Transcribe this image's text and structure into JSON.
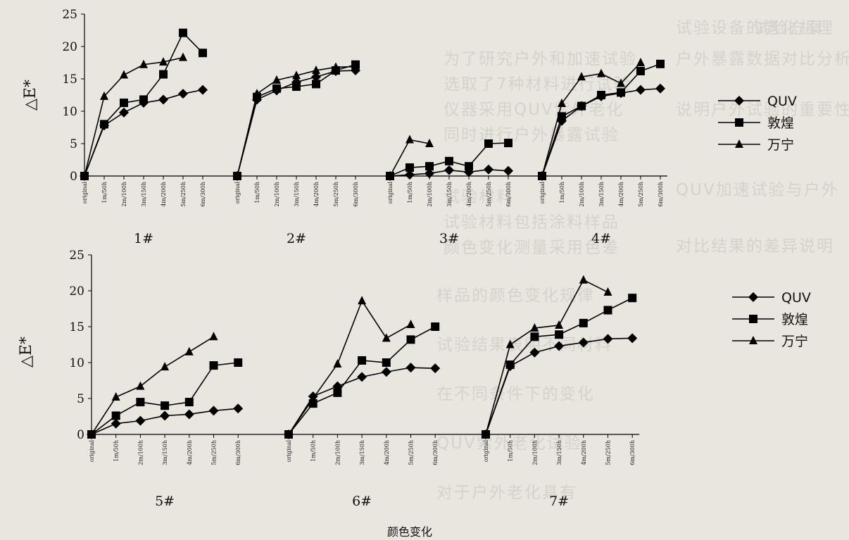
{
  "caption": "颜色变化",
  "chart_data": [
    {
      "type": "line",
      "ylabel": "△E*",
      "ylim": [
        0,
        25
      ],
      "yticks": [
        0,
        5,
        10,
        15,
        20,
        25
      ],
      "x": [
        "original",
        "1m/50h",
        "2m/100h",
        "3m/150h",
        "4m/200h",
        "5m/250h",
        "6m/300h"
      ],
      "legend_position": "right",
      "legend": [
        "QUV",
        "敦煌",
        "万宁"
      ],
      "groups": [
        {
          "label": "1#",
          "series": [
            {
              "name": "QUV",
              "values": [
                0,
                7.8,
                9.8,
                11.3,
                11.8,
                12.7,
                13.3
              ]
            },
            {
              "name": "敦煌",
              "values": [
                0,
                8,
                11.3,
                11.8,
                15.7,
                22.1,
                19
              ]
            },
            {
              "name": "万宁",
              "values": [
                0,
                12.3,
                15.6,
                17.2,
                17.6,
                18.3
              ]
            }
          ]
        },
        {
          "label": "2#",
          "series": [
            {
              "name": "QUV",
              "values": [
                0,
                11.8,
                13.2,
                14.5,
                15.3,
                16.2,
                16.3
              ]
            },
            {
              "name": "敦煌",
              "values": [
                0,
                12.2,
                13.5,
                13.8,
                14.2,
                16.3,
                17.2
              ]
            },
            {
              "name": "万宁",
              "values": [
                0,
                12.7,
                14.8,
                15.5,
                16.3,
                16.8,
                16.9
              ]
            }
          ]
        },
        {
          "label": "3#",
          "series": [
            {
              "name": "QUV",
              "values": [
                0,
                0.2,
                0.4,
                0.9,
                0.6,
                1.0,
                0.8
              ]
            },
            {
              "name": "敦煌",
              "values": [
                0,
                1.3,
                1.5,
                2.3,
                1.5,
                5.0,
                5.1
              ]
            },
            {
              "name": "万宁",
              "values": [
                0,
                5.6,
                5.0
              ]
            }
          ]
        },
        {
          "label": "4#",
          "series": [
            {
              "name": "QUV",
              "values": [
                0,
                8.5,
                10.8,
                12.3,
                12.8,
                13.3,
                13.5
              ]
            },
            {
              "name": "敦煌",
              "values": [
                0,
                9.2,
                10.8,
                12.5,
                12.9,
                16.2,
                17.3
              ]
            },
            {
              "name": "万宁",
              "values": [
                0,
                11.2,
                15.3,
                15.8,
                14.3,
                17.5
              ]
            }
          ]
        }
      ]
    },
    {
      "type": "line",
      "ylabel": "△E*",
      "ylim": [
        0,
        25
      ],
      "yticks": [
        0,
        5,
        10,
        15,
        20,
        25
      ],
      "x": [
        "original",
        "1m/50h",
        "2m/100h",
        "3m/150h",
        "4m/200h",
        "5m/250h",
        "6m/300h"
      ],
      "legend_position": "right",
      "legend": [
        "QUV",
        "敦煌",
        "万宁"
      ],
      "groups": [
        {
          "label": "5#",
          "series": [
            {
              "name": "QUV",
              "values": [
                0,
                1.5,
                1.9,
                2.6,
                2.8,
                3.3,
                3.6
              ]
            },
            {
              "name": "敦煌",
              "values": [
                0,
                2.6,
                4.5,
                4.0,
                4.5,
                9.6,
                10.0
              ]
            },
            {
              "name": "万宁",
              "values": [
                0,
                5.2,
                6.7,
                9.4,
                11.5,
                13.6
              ]
            }
          ]
        },
        {
          "label": "6#",
          "series": [
            {
              "name": "QUV",
              "values": [
                0,
                5.3,
                6.7,
                8.0,
                8.7,
                9.3,
                9.2
              ]
            },
            {
              "name": "敦煌",
              "values": [
                0,
                4.3,
                5.8,
                10.3,
                10.0,
                13.2,
                15.0
              ]
            },
            {
              "name": "万宁",
              "values": [
                0,
                5.0,
                9.8,
                18.6,
                13.4,
                15.3
              ]
            }
          ]
        },
        {
          "label": "7#",
          "series": [
            {
              "name": "QUV",
              "values": [
                0,
                9.5,
                11.4,
                12.3,
                12.8,
                13.3,
                13.4
              ]
            },
            {
              "name": "敦煌",
              "values": [
                0,
                9.7,
                13.6,
                13.9,
                15.5,
                17.3,
                19.0
              ]
            },
            {
              "name": "万宁",
              "values": [
                0,
                12.5,
                14.8,
                15.2,
                21.5,
                19.8
              ]
            }
          ]
        }
      ]
    }
  ]
}
